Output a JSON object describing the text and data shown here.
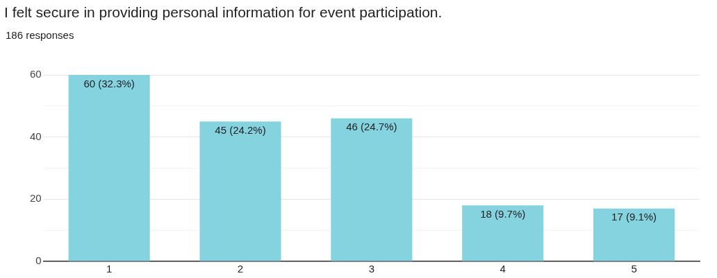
{
  "chart_data": {
    "type": "bar",
    "title": "I felt secure in providing personal information for event participation.",
    "subtitle": "186 responses",
    "categories": [
      "1",
      "2",
      "3",
      "4",
      "5"
    ],
    "values": [
      60,
      45,
      46,
      18,
      17
    ],
    "value_labels": [
      "60 (32.3%)",
      "45 (24.2%)",
      "46 (24.7%)",
      "18 (9.7%)",
      "17 (9.1%)"
    ],
    "color": "#86d3e0",
    "ylim": [
      0,
      60
    ],
    "yticks": [
      0,
      {
        "value": 10,
        "label": null
      },
      20,
      {
        "value": 30,
        "label": null
      },
      40,
      {
        "value": 50,
        "label": null
      },
      60
    ],
    "grid": "y",
    "legend": false
  }
}
